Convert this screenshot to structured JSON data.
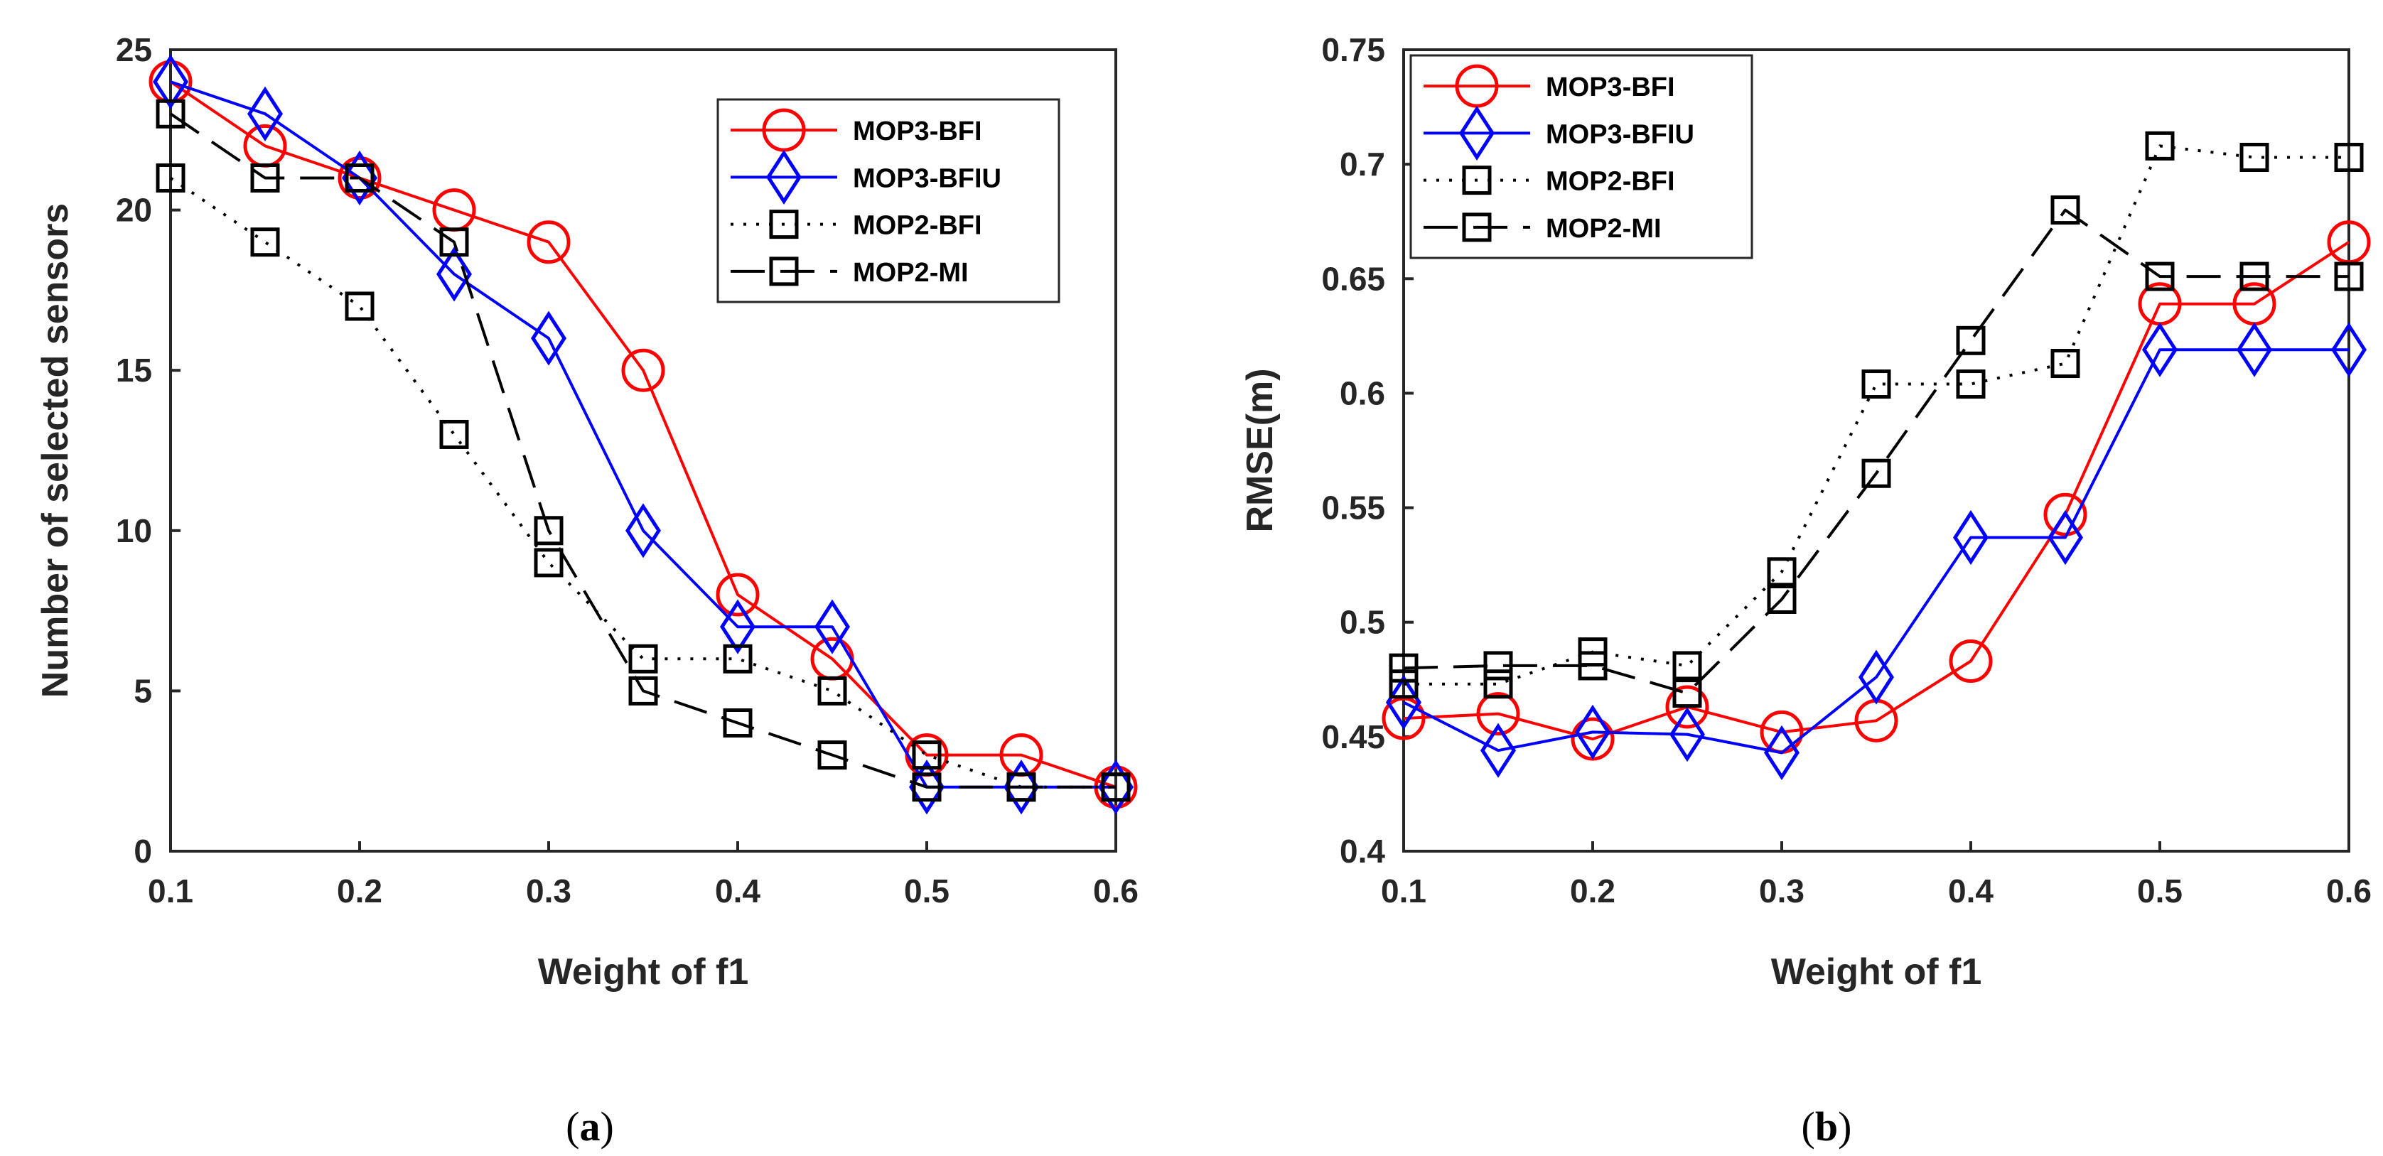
{
  "chart_data": [
    {
      "type": "line",
      "panel_label": "a",
      "title": "",
      "xlabel": "Weight of f1",
      "ylabel": "Number of selected sensors",
      "xlim": [
        0.1,
        0.6
      ],
      "ylim": [
        0,
        25
      ],
      "xticks": [
        0.1,
        0.2,
        0.3,
        0.4,
        0.5,
        0.6
      ],
      "xtick_labels": [
        "0.1",
        "0.2",
        "0.3",
        "0.4",
        "0.5",
        "0.6"
      ],
      "yticks": [
        0,
        5,
        10,
        15,
        20,
        25
      ],
      "ytick_labels": [
        "0",
        "5",
        "10",
        "15",
        "20",
        "25"
      ],
      "legend_position": "top-right",
      "x": [
        0.1,
        0.15,
        0.2,
        0.25,
        0.3,
        0.35,
        0.4,
        0.45,
        0.5,
        0.55,
        0.6
      ],
      "series": [
        {
          "name": "MOP3-BFI",
          "color": "#ff0000",
          "marker": "circle",
          "line_style": "solid",
          "values": [
            24,
            22,
            21,
            20,
            19,
            15,
            8,
            6,
            3,
            3,
            2
          ]
        },
        {
          "name": "MOP3-BFIU",
          "color": "#0000ff",
          "marker": "diamond",
          "line_style": "solid",
          "values": [
            24,
            23,
            21,
            18,
            16,
            10,
            7,
            7,
            2,
            2,
            2
          ]
        },
        {
          "name": "MOP2-BFI",
          "color": "#000000",
          "marker": "square",
          "line_style": "dotted",
          "values": [
            21,
            19,
            17,
            13,
            9,
            6,
            6,
            5,
            3,
            2,
            2
          ]
        },
        {
          "name": "MOP2-MI",
          "color": "#000000",
          "marker": "square",
          "line_style": "dashed",
          "values": [
            23,
            21,
            21,
            19,
            10,
            5,
            4,
            3,
            2,
            2,
            2
          ]
        }
      ]
    },
    {
      "type": "line",
      "panel_label": "b",
      "title": "",
      "xlabel": "Weight of f1",
      "ylabel": "RMSE(m)",
      "xlim": [
        0.1,
        0.6
      ],
      "ylim": [
        0.4,
        0.75
      ],
      "xticks": [
        0.1,
        0.2,
        0.3,
        0.4,
        0.5,
        0.6
      ],
      "xtick_labels": [
        "0.1",
        "0.2",
        "0.3",
        "0.4",
        "0.5",
        "0.6"
      ],
      "yticks": [
        0.4,
        0.45,
        0.5,
        0.55,
        0.6,
        0.65,
        0.7,
        0.75
      ],
      "ytick_labels": [
        "0.4",
        "0.45",
        "0.5",
        "0.55",
        "0.6",
        "0.65",
        "0.7",
        "0.75"
      ],
      "legend_position": "top-left",
      "x": [
        0.1,
        0.15,
        0.2,
        0.25,
        0.3,
        0.35,
        0.4,
        0.45,
        0.5,
        0.55,
        0.6
      ],
      "series": [
        {
          "name": "MOP3-BFI",
          "color": "#ff0000",
          "marker": "circle",
          "line_style": "solid",
          "values": [
            0.458,
            0.46,
            0.449,
            0.463,
            0.452,
            0.457,
            0.483,
            0.547,
            0.639,
            0.639,
            0.666
          ]
        },
        {
          "name": "MOP3-BFIU",
          "color": "#0000ff",
          "marker": "diamond",
          "line_style": "solid",
          "values": [
            0.465,
            0.444,
            0.452,
            0.451,
            0.443,
            0.476,
            0.537,
            0.537,
            0.619,
            0.619,
            0.619
          ]
        },
        {
          "name": "MOP2-BFI",
          "color": "#000000",
          "marker": "square",
          "line_style": "dotted",
          "values": [
            0.473,
            0.473,
            0.487,
            0.481,
            0.522,
            0.604,
            0.604,
            0.613,
            0.708,
            0.703,
            0.703
          ]
        },
        {
          "name": "MOP2-MI",
          "color": "#000000",
          "marker": "square",
          "line_style": "dashed",
          "values": [
            0.48,
            0.481,
            0.481,
            0.469,
            0.51,
            0.565,
            0.623,
            0.68,
            0.651,
            0.651,
            0.651
          ]
        }
      ]
    }
  ]
}
